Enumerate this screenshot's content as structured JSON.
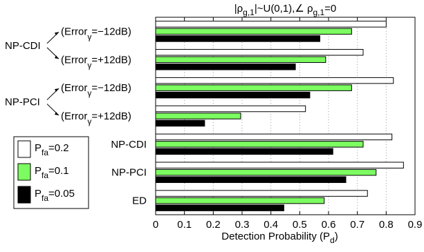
{
  "chart_data": {
    "type": "bar",
    "orientation": "horizontal",
    "title_parts": [
      "|ρ",
      "g,1",
      "|~U(0,1),∠ ρ",
      "g,1",
      "=0"
    ],
    "xlabel": "Detection Probability (P",
    "xlabel_sub": "d",
    "xlabel_close": ")",
    "xlim": [
      0,
      0.9
    ],
    "xticks": [
      "0",
      "0.1",
      "0.2",
      "0.3",
      "0.4",
      "0.5",
      "0.6",
      "0.7",
      "0.8",
      "0.9"
    ],
    "xtick_values": [
      0,
      0.1,
      0.2,
      0.3,
      0.4,
      0.5,
      0.6,
      0.7,
      0.8,
      0.9
    ],
    "grid": "vertical dotted",
    "legend_position": "left",
    "groups": [
      {
        "label": "NP-CDI",
        "sub": "(Error",
        "sub_sym": "γ",
        "sub_val": "=−12dB)"
      },
      {
        "label": "",
        "sub": "(Error",
        "sub_sym": "γ",
        "sub_val": "=+12dB)"
      },
      {
        "label": "NP-PCI",
        "sub": "(Error",
        "sub_sym": "γ",
        "sub_val": "=−12dB)"
      },
      {
        "label": "",
        "sub": "(Error",
        "sub_sym": "γ",
        "sub_val": "=+12dB)"
      },
      {
        "label": "NP-CDI"
      },
      {
        "label": "NP-PCI"
      },
      {
        "label": "ED"
      }
    ],
    "series": [
      {
        "name": "P",
        "name_sub": "fa",
        "name_val": "=0.2",
        "color": "#ffffff",
        "values": [
          0.8,
          0.72,
          0.825,
          0.52,
          0.82,
          0.86,
          0.735
        ]
      },
      {
        "name": "P",
        "name_sub": "fa",
        "name_val": "=0.1",
        "color": "#7cfc60",
        "values": [
          0.68,
          0.59,
          0.68,
          0.295,
          0.72,
          0.765,
          0.585
        ]
      },
      {
        "name": "P",
        "name_sub": "fa",
        "name_val": "=0.05",
        "color": "#000000",
        "values": [
          0.57,
          0.485,
          0.535,
          0.17,
          0.615,
          0.66,
          0.445
        ]
      }
    ]
  }
}
